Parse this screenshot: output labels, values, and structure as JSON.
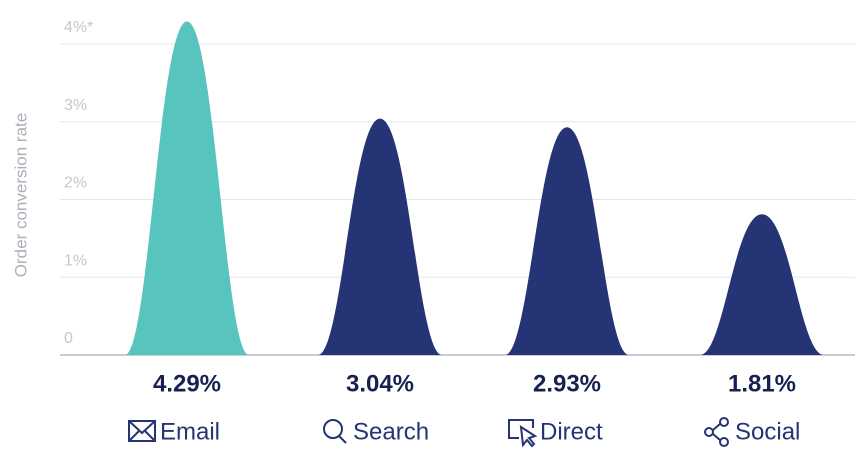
{
  "chart_data": {
    "type": "bell",
    "y_label": "Order conversion rate",
    "categories": [
      "Email",
      "Search",
      "Direct",
      "Social"
    ],
    "values": [
      4.29,
      3.04,
      2.93,
      1.81
    ],
    "value_labels": [
      "4.29%",
      "3.04%",
      "2.93%",
      "1.81%"
    ],
    "colors": [
      "#57c4be",
      "#243474",
      "#243474",
      "#243474"
    ],
    "ylim": [
      0,
      4
    ],
    "yticks": [
      0,
      {
        "value": 1,
        "label": "1%"
      },
      {
        "value": 2,
        "label": "2%"
      },
      {
        "value": 3,
        "label": "3%"
      },
      {
        "value": 4,
        "label": "4%*"
      }
    ],
    "grid": true
  }
}
